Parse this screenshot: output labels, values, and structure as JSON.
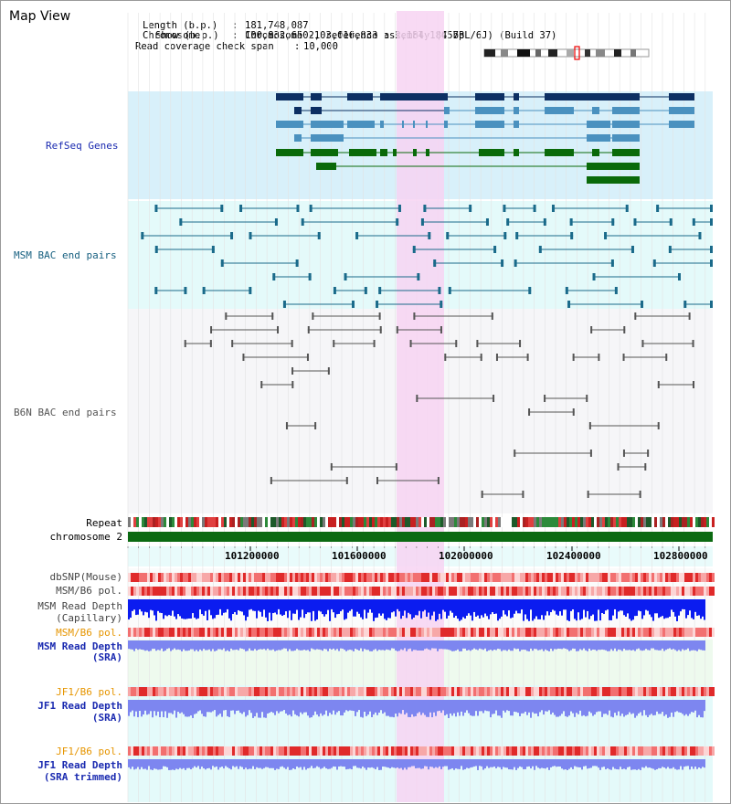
{
  "page": {
    "title": "Map View"
  },
  "info": {
    "chromosome_key": "Chromosome",
    "chromosome_val": "Chromosome 2, reference assembly (C57BL/6J) (Build 37)",
    "length_key": "Length (b.p.)",
    "length_val": "181,748,087",
    "show_key": "Show (b.p.)",
    "show_val": "100,832,650-103,016,833 : 2,184,184 bp",
    "span_key": "Read coverage check span",
    "span_val": "10,000"
  },
  "tracks": {
    "refseq": "RefSeq Genes",
    "msm_bac": "MSM BAC end pairs",
    "b6n_bac": "B6N BAC end pairs",
    "repeat": "Repeat",
    "chromosome": "chromosome 2",
    "dbsnp": "dbSNP(Mouse)",
    "msm_b6_pol_1": "MSM/B6 pol.",
    "msm_depth_cap_1": "MSM Read Depth",
    "msm_depth_cap_2": "(Capillary)",
    "msm_b6_pol_2": "MSM/B6 pol.",
    "msm_depth_sra_1": "MSM Read Depth",
    "msm_depth_sra_2": "(SRA)",
    "jf1_b6_pol_1": "JF1/B6 pol.",
    "jf1_depth_sra_1": "JF1 Read Depth",
    "jf1_depth_sra_2": "(SRA)",
    "jf1_b6_pol_2": "JF1/B6 pol.",
    "jf1_depth_trim_1": "JF1 Read Depth",
    "jf1_depth_trim_2": "(SRA trimmed)"
  },
  "axis": {
    "ticks": [
      "101200000",
      "101600000",
      "102000000",
      "102400000",
      "102800000"
    ]
  },
  "colors": {
    "refseq_dark": "#0d2f63",
    "refseq_light": "#4a91bf",
    "refseq_green": "#0a6a0a",
    "msm_line": "#1a6a8a",
    "b6n_line": "#555555",
    "depth_blue": "#0b1cf0",
    "depth_light": "#7d86f0",
    "highlight": "#f7d4f2"
  }
}
